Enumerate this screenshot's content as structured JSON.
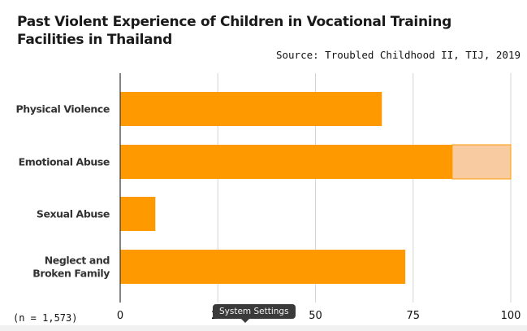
{
  "chart_data": {
    "type": "bar",
    "orientation": "horizontal",
    "title": "Past Violent Experience of Children in Vocational Training Facilities in Thailand",
    "source": "Source: Troubled Childhood II, TIJ, 2019",
    "note": "(n = 1,573)",
    "categories": [
      "Physical Violence",
      "Emotional Abuse",
      "Sexual Abuse",
      "Neglect and Broken Family"
    ],
    "series": [
      {
        "values": [
          67,
          85,
          9,
          73
        ],
        "color": "#FF9900"
      },
      {
        "values": [
          0,
          15,
          0,
          0
        ],
        "color": "#F8CBA0"
      }
    ],
    "stacked": true,
    "xlim": [
      0,
      100
    ],
    "xticks": [
      0,
      25,
      50,
      75,
      100
    ],
    "grid": true
  },
  "tooltip": {
    "text": "System Settings"
  }
}
